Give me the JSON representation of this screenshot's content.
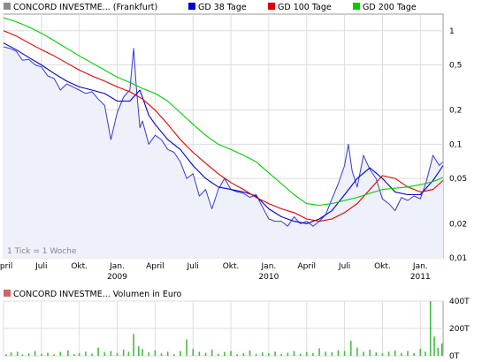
{
  "chart_data": [
    {
      "type": "line",
      "y_scale": "log",
      "legend_position": "top",
      "legend": [
        {
          "label": "CONCORD INVESTME... (Frankfurt)",
          "color": "#8a8a8a"
        },
        {
          "label": "GD 38 Tage",
          "color": "#0000cc"
        },
        {
          "label": "GD 100 Tage",
          "color": "#dd0000"
        },
        {
          "label": "GD 200 Tage",
          "color": "#00cc00"
        }
      ],
      "x_ticks": [
        {
          "label": "April",
          "year": "",
          "t": 0.0
        },
        {
          "label": "Juli",
          "year": "",
          "t": 3.0
        },
        {
          "label": "Okt.",
          "year": "",
          "t": 6.0
        },
        {
          "label": "Jan.",
          "year": "2009",
          "t": 9.0
        },
        {
          "label": "April",
          "year": "",
          "t": 12.0
        },
        {
          "label": "Juli",
          "year": "",
          "t": 15.0
        },
        {
          "label": "Okt.",
          "year": "",
          "t": 18.0
        },
        {
          "label": "Jan.",
          "year": "2010",
          "t": 21.0
        },
        {
          "label": "April",
          "year": "",
          "t": 24.0
        },
        {
          "label": "Juli",
          "year": "",
          "t": 27.0
        },
        {
          "label": "Okt.",
          "year": "",
          "t": 30.0
        },
        {
          "label": "Jan.",
          "year": "2011",
          "t": 33.0
        }
      ],
      "y_ticks": [
        {
          "label": "1",
          "v": 1
        },
        {
          "label": "0,5",
          "v": 0.5
        },
        {
          "label": "0,2",
          "v": 0.2
        },
        {
          "label": "0,1",
          "v": 0.1
        },
        {
          "label": "0,05",
          "v": 0.05
        },
        {
          "label": "0,02",
          "v": 0.02
        },
        {
          "label": "0,01",
          "v": 0.01
        }
      ],
      "x_range": [
        0,
        34.8
      ],
      "y_range": [
        0.01,
        1.4
      ],
      "annotation": "1 Tick = 1 Woche",
      "series": [
        {
          "name": "CONCORD INVESTME... (Frankfurt)",
          "color": "#3a3acc",
          "fill": "#eef0fa",
          "x": [
            0.0,
            0.5,
            1.0,
            1.5,
            2.0,
            2.5,
            3.0,
            3.5,
            4.0,
            4.5,
            5.0,
            5.5,
            6.0,
            6.5,
            7.0,
            7.5,
            8.0,
            8.5,
            9.0,
            9.5,
            10.0,
            10.3,
            10.5,
            10.8,
            11.0,
            11.5,
            12.0,
            12.5,
            13.0,
            13.5,
            14.0,
            14.5,
            15.0,
            15.5,
            16.0,
            16.5,
            17.0,
            17.5,
            18.0,
            18.5,
            19.0,
            19.5,
            20.0,
            20.5,
            21.0,
            21.5,
            22.0,
            22.5,
            23.0,
            23.5,
            24.0,
            24.5,
            25.0,
            25.5,
            26.0,
            26.5,
            27.0,
            27.3,
            27.6,
            28.0,
            28.5,
            29.0,
            29.5,
            30.0,
            30.5,
            31.0,
            31.5,
            32.0,
            32.5,
            33.0,
            33.5,
            34.0,
            34.5,
            34.8
          ],
          "y": [
            0.72,
            0.7,
            0.66,
            0.55,
            0.56,
            0.5,
            0.48,
            0.4,
            0.38,
            0.3,
            0.34,
            0.32,
            0.3,
            0.28,
            0.29,
            0.25,
            0.22,
            0.11,
            0.19,
            0.26,
            0.3,
            0.7,
            0.33,
            0.14,
            0.16,
            0.1,
            0.12,
            0.11,
            0.09,
            0.085,
            0.07,
            0.05,
            0.055,
            0.035,
            0.04,
            0.027,
            0.04,
            0.05,
            0.04,
            0.038,
            0.037,
            0.034,
            0.036,
            0.028,
            0.022,
            0.021,
            0.021,
            0.019,
            0.023,
            0.02,
            0.021,
            0.019,
            0.021,
            0.024,
            0.033,
            0.045,
            0.065,
            0.1,
            0.058,
            0.042,
            0.08,
            0.06,
            0.05,
            0.033,
            0.03,
            0.026,
            0.034,
            0.032,
            0.035,
            0.033,
            0.048,
            0.08,
            0.065,
            0.07
          ]
        },
        {
          "name": "GD 38 Tage",
          "color": "#0000cc",
          "x": [
            0.0,
            1.0,
            2.0,
            3.0,
            4.0,
            5.0,
            6.0,
            7.0,
            8.0,
            9.0,
            10.0,
            10.8,
            11.5,
            12.0,
            13.0,
            14.0,
            15.0,
            16.0,
            17.0,
            18.0,
            19.0,
            20.0,
            21.0,
            22.0,
            23.0,
            24.0,
            25.0,
            26.0,
            27.0,
            28.0,
            29.0,
            30.0,
            31.0,
            32.0,
            33.0,
            34.0,
            34.8
          ],
          "y": [
            0.78,
            0.68,
            0.58,
            0.5,
            0.42,
            0.36,
            0.32,
            0.3,
            0.28,
            0.24,
            0.24,
            0.3,
            0.18,
            0.15,
            0.11,
            0.09,
            0.065,
            0.05,
            0.042,
            0.04,
            0.038,
            0.035,
            0.027,
            0.023,
            0.021,
            0.02,
            0.022,
            0.026,
            0.036,
            0.05,
            0.062,
            0.05,
            0.038,
            0.036,
            0.036,
            0.048,
            0.065
          ]
        },
        {
          "name": "GD 100 Tage",
          "color": "#dd0000",
          "x": [
            0.0,
            1.0,
            2.0,
            3.0,
            4.0,
            5.0,
            6.0,
            7.0,
            8.0,
            9.0,
            10.0,
            11.0,
            12.0,
            13.0,
            14.0,
            15.0,
            16.0,
            17.0,
            18.0,
            19.0,
            20.0,
            21.0,
            22.0,
            23.0,
            24.0,
            25.0,
            26.0,
            27.0,
            28.0,
            29.0,
            30.0,
            31.0,
            32.0,
            33.0,
            34.0,
            34.8
          ],
          "y": [
            1.0,
            0.9,
            0.78,
            0.68,
            0.6,
            0.52,
            0.45,
            0.4,
            0.36,
            0.32,
            0.29,
            0.25,
            0.2,
            0.15,
            0.11,
            0.085,
            0.068,
            0.055,
            0.046,
            0.04,
            0.034,
            0.03,
            0.027,
            0.025,
            0.022,
            0.021,
            0.022,
            0.025,
            0.03,
            0.04,
            0.053,
            0.05,
            0.042,
            0.038,
            0.04,
            0.048
          ]
        },
        {
          "name": "GD 200 Tage",
          "color": "#00cc00",
          "x": [
            0.0,
            1.0,
            2.0,
            3.0,
            4.0,
            5.0,
            6.0,
            7.0,
            8.0,
            9.0,
            10.0,
            11.0,
            12.0,
            13.0,
            14.0,
            15.0,
            16.0,
            17.0,
            18.0,
            19.0,
            20.0,
            21.0,
            22.0,
            23.0,
            24.0,
            25.0,
            26.0,
            27.0,
            28.0,
            29.0,
            30.0,
            31.0,
            32.0,
            33.0,
            34.0,
            34.8
          ],
          "y": [
            1.3,
            1.2,
            1.08,
            0.95,
            0.82,
            0.7,
            0.6,
            0.52,
            0.45,
            0.39,
            0.35,
            0.31,
            0.28,
            0.24,
            0.19,
            0.15,
            0.12,
            0.1,
            0.09,
            0.08,
            0.07,
            0.056,
            0.045,
            0.036,
            0.03,
            0.029,
            0.03,
            0.032,
            0.034,
            0.037,
            0.04,
            0.041,
            0.042,
            0.044,
            0.047,
            0.051
          ]
        }
      ]
    },
    {
      "type": "bar",
      "legend": [
        {
          "label": "CONCORD INVESTME... Volumen in Euro",
          "color": "#cc6666"
        }
      ],
      "y_ticks": [
        {
          "label": "400T",
          "v": 400
        },
        {
          "label": "200T",
          "v": 200
        },
        {
          "label": "0T",
          "v": 0
        }
      ],
      "y_range": [
        0,
        400
      ],
      "x_range": [
        0,
        34.8
      ],
      "bars": [
        {
          "t": 0.2,
          "v": 12
        },
        {
          "t": 0.6,
          "v": 25
        },
        {
          "t": 1.1,
          "v": 30
        },
        {
          "t": 1.5,
          "v": 10
        },
        {
          "t": 2.0,
          "v": 18
        },
        {
          "t": 2.5,
          "v": 35
        },
        {
          "t": 3.0,
          "v": 15
        },
        {
          "t": 3.5,
          "v": 22
        },
        {
          "t": 4.0,
          "v": 10
        },
        {
          "t": 4.5,
          "v": 28
        },
        {
          "t": 5.1,
          "v": 40
        },
        {
          "t": 5.6,
          "v": 12
        },
        {
          "t": 6.0,
          "v": 20
        },
        {
          "t": 6.5,
          "v": 30
        },
        {
          "t": 7.0,
          "v": 15
        },
        {
          "t": 7.5,
          "v": 60
        },
        {
          "t": 8.0,
          "v": 25
        },
        {
          "t": 8.5,
          "v": 35
        },
        {
          "t": 9.0,
          "v": 20
        },
        {
          "t": 9.5,
          "v": 45
        },
        {
          "t": 9.9,
          "v": 30
        },
        {
          "t": 10.3,
          "v": 160
        },
        {
          "t": 10.7,
          "v": 70
        },
        {
          "t": 11.0,
          "v": 50
        },
        {
          "t": 11.5,
          "v": 25
        },
        {
          "t": 12.0,
          "v": 40
        },
        {
          "t": 12.5,
          "v": 18
        },
        {
          "t": 13.0,
          "v": 30
        },
        {
          "t": 13.5,
          "v": 12
        },
        {
          "t": 14.0,
          "v": 35
        },
        {
          "t": 14.5,
          "v": 120
        },
        {
          "t": 15.0,
          "v": 50
        },
        {
          "t": 15.5,
          "v": 30
        },
        {
          "t": 16.0,
          "v": 22
        },
        {
          "t": 16.5,
          "v": 45
        },
        {
          "t": 17.0,
          "v": 15
        },
        {
          "t": 17.5,
          "v": 28
        },
        {
          "t": 18.0,
          "v": 35
        },
        {
          "t": 18.5,
          "v": 12
        },
        {
          "t": 19.0,
          "v": 20
        },
        {
          "t": 19.5,
          "v": 40
        },
        {
          "t": 20.0,
          "v": 15
        },
        {
          "t": 20.5,
          "v": 25
        },
        {
          "t": 21.0,
          "v": 18
        },
        {
          "t": 21.5,
          "v": 30
        },
        {
          "t": 22.0,
          "v": 12
        },
        {
          "t": 22.5,
          "v": 22
        },
        {
          "t": 23.0,
          "v": 35
        },
        {
          "t": 23.5,
          "v": 15
        },
        {
          "t": 24.0,
          "v": 28
        },
        {
          "t": 24.5,
          "v": 20
        },
        {
          "t": 25.0,
          "v": 55
        },
        {
          "t": 25.5,
          "v": 30
        },
        {
          "t": 26.0,
          "v": 25
        },
        {
          "t": 26.5,
          "v": 40
        },
        {
          "t": 27.0,
          "v": 35
        },
        {
          "t": 27.5,
          "v": 110
        },
        {
          "t": 28.0,
          "v": 60
        },
        {
          "t": 28.5,
          "v": 30
        },
        {
          "t": 29.0,
          "v": 45
        },
        {
          "t": 29.5,
          "v": 25
        },
        {
          "t": 30.0,
          "v": 18
        },
        {
          "t": 30.5,
          "v": 30
        },
        {
          "t": 31.0,
          "v": 40
        },
        {
          "t": 31.5,
          "v": 22
        },
        {
          "t": 32.0,
          "v": 35
        },
        {
          "t": 32.5,
          "v": 20
        },
        {
          "t": 33.0,
          "v": 50
        },
        {
          "t": 33.4,
          "v": 30
        },
        {
          "t": 33.8,
          "v": 400
        },
        {
          "t": 34.1,
          "v": 140
        },
        {
          "t": 34.4,
          "v": 60
        },
        {
          "t": 34.7,
          "v": 90
        }
      ]
    }
  ]
}
